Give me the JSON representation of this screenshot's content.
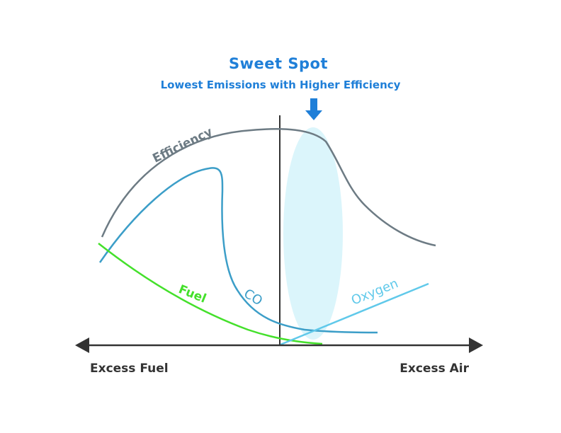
{
  "title": "Sweet Spot",
  "subtitle": "Lowest Emissions with Higher Efficiency",
  "axis": {
    "left_label": "Excess Fuel",
    "right_label": "Excess Air"
  },
  "curves": {
    "efficiency": {
      "label": "Efficiency",
      "color": "#6d7b84"
    },
    "co": {
      "label": "CO",
      "color": "#3c9ec8"
    },
    "fuel": {
      "label": "Fuel",
      "color": "#44e02b"
    },
    "oxygen": {
      "label": "Oxygen",
      "color": "#60c9ea"
    }
  },
  "colors": {
    "accent": "#1f7fd8",
    "axis": "#333333",
    "sweet_spot_fill": "#d7f4fb"
  }
}
